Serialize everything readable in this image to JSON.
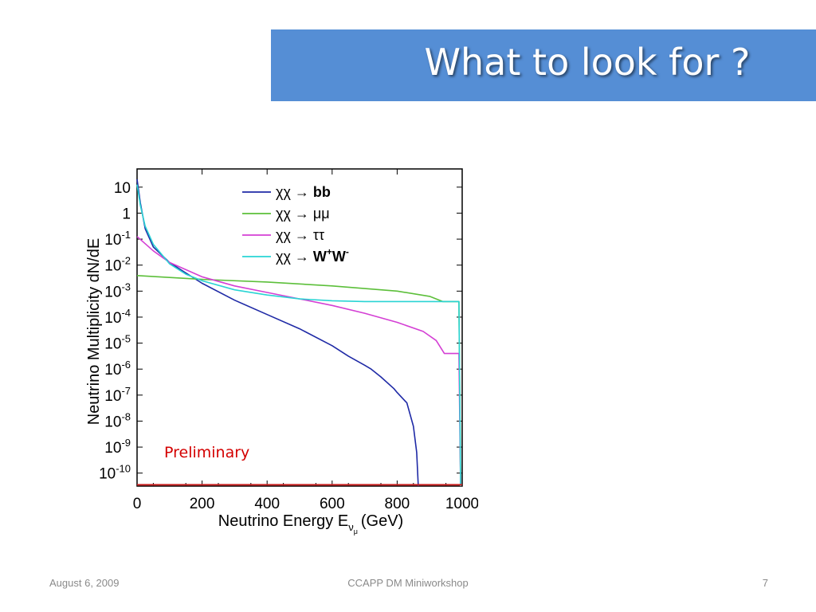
{
  "slide": {
    "title": "What to look for ?",
    "footer_left": "August 6, 2009",
    "footer_center": "CCAPP DM Miniworkshop",
    "footer_right": "7"
  },
  "colors": {
    "title_bar": "#558ed5",
    "annotation": "#d40000"
  },
  "chart_data": {
    "type": "line",
    "xlabel": "Neutrino Energy E",
    "xlabel_sub": "ν",
    "xlabel_subsub": "μ",
    "xlabel_unit": "(GeV)",
    "ylabel": "Neutrino Multiplicity dN/dE",
    "xlim": [
      0,
      1000
    ],
    "y_log_exponent_range": [
      -10.5,
      1.7
    ],
    "y_scale": "log",
    "x_ticks": [
      0,
      200,
      400,
      600,
      800,
      1000
    ],
    "y_ticks": [
      {
        "exp": 1,
        "base": "10",
        "sup": ""
      },
      {
        "exp": 0,
        "base": "1",
        "sup": ""
      },
      {
        "exp": -1,
        "base": "10",
        "sup": "-1"
      },
      {
        "exp": -2,
        "base": "10",
        "sup": "-2"
      },
      {
        "exp": -3,
        "base": "10",
        "sup": "-3"
      },
      {
        "exp": -4,
        "base": "10",
        "sup": "-4"
      },
      {
        "exp": -5,
        "base": "10",
        "sup": "-5"
      },
      {
        "exp": -6,
        "base": "10",
        "sup": "-6"
      },
      {
        "exp": -7,
        "base": "10",
        "sup": "-7"
      },
      {
        "exp": -8,
        "base": "10",
        "sup": "-8"
      },
      {
        "exp": -9,
        "base": "10",
        "sup": "-9"
      },
      {
        "exp": -10,
        "base": "10",
        "sup": "-10"
      }
    ],
    "annotation": "Preliminary",
    "legend_position": "top-right",
    "series": [
      {
        "name": "χχ → bb",
        "name_main": "χχ → ",
        "name_bold": "bb",
        "name_sup1": "",
        "name_mid": "",
        "name_sup2": "",
        "color": "#1f2aa6",
        "points": [
          [
            0,
            1.3
          ],
          [
            10,
            0.4
          ],
          [
            25,
            -0.6
          ],
          [
            50,
            -1.3
          ],
          [
            100,
            -1.9
          ],
          [
            150,
            -2.3
          ],
          [
            200,
            -2.7
          ],
          [
            300,
            -3.35
          ],
          [
            400,
            -3.9
          ],
          [
            500,
            -4.45
          ],
          [
            600,
            -5.1
          ],
          [
            650,
            -5.5
          ],
          [
            700,
            -5.85
          ],
          [
            720,
            -6.0
          ],
          [
            750,
            -6.3
          ],
          [
            790,
            -6.75
          ],
          [
            800,
            -6.9
          ],
          [
            830,
            -7.3
          ],
          [
            850,
            -8.2
          ],
          [
            860,
            -9.2
          ],
          [
            865,
            -10.5
          ]
        ]
      },
      {
        "name": "χχ → μμ",
        "name_main": "χχ → μμ",
        "name_bold": "",
        "name_sup1": "",
        "name_mid": "",
        "name_sup2": "",
        "color": "#5cbf3a",
        "points": [
          [
            0,
            -2.4
          ],
          [
            200,
            -2.55
          ],
          [
            400,
            -2.65
          ],
          [
            600,
            -2.8
          ],
          [
            800,
            -3.0
          ],
          [
            900,
            -3.2
          ],
          [
            940,
            -3.4
          ],
          [
            980,
            -3.4
          ],
          [
            990,
            -3.4
          ],
          [
            995,
            -10.5
          ]
        ]
      },
      {
        "name": "χχ → ττ",
        "name_main": "χχ → ττ",
        "name_bold": "",
        "name_sup1": "",
        "name_mid": "",
        "name_sup2": "",
        "color": "#d43fd4",
        "points": [
          [
            0,
            -0.9
          ],
          [
            50,
            -1.45
          ],
          [
            100,
            -1.9
          ],
          [
            200,
            -2.45
          ],
          [
            300,
            -2.8
          ],
          [
            400,
            -3.05
          ],
          [
            500,
            -3.3
          ],
          [
            600,
            -3.55
          ],
          [
            700,
            -3.85
          ],
          [
            800,
            -4.2
          ],
          [
            880,
            -4.55
          ],
          [
            920,
            -4.9
          ],
          [
            945,
            -5.4
          ],
          [
            990,
            -5.4
          ],
          [
            995,
            -10.5
          ]
        ]
      },
      {
        "name": "χχ → W+W-",
        "name_main": "χχ → ",
        "name_bold": "W",
        "name_sup1": "+",
        "name_mid": "W",
        "name_sup2": "-",
        "color": "#2ad4d4",
        "points": [
          [
            0,
            1.1
          ],
          [
            10,
            0.3
          ],
          [
            25,
            -0.5
          ],
          [
            50,
            -1.2
          ],
          [
            100,
            -1.95
          ],
          [
            150,
            -2.35
          ],
          [
            200,
            -2.6
          ],
          [
            300,
            -2.95
          ],
          [
            400,
            -3.15
          ],
          [
            500,
            -3.3
          ],
          [
            600,
            -3.37
          ],
          [
            700,
            -3.4
          ],
          [
            800,
            -3.4
          ],
          [
            990,
            -3.4
          ],
          [
            995,
            -10.5
          ]
        ]
      },
      {
        "name": "",
        "name_main": "",
        "name_bold": "",
        "name_sup1": "",
        "name_mid": "",
        "name_sup2": "",
        "color": "#c81e1e",
        "points": [
          [
            0,
            -10.45
          ],
          [
            1000,
            -10.45
          ]
        ]
      }
    ]
  }
}
